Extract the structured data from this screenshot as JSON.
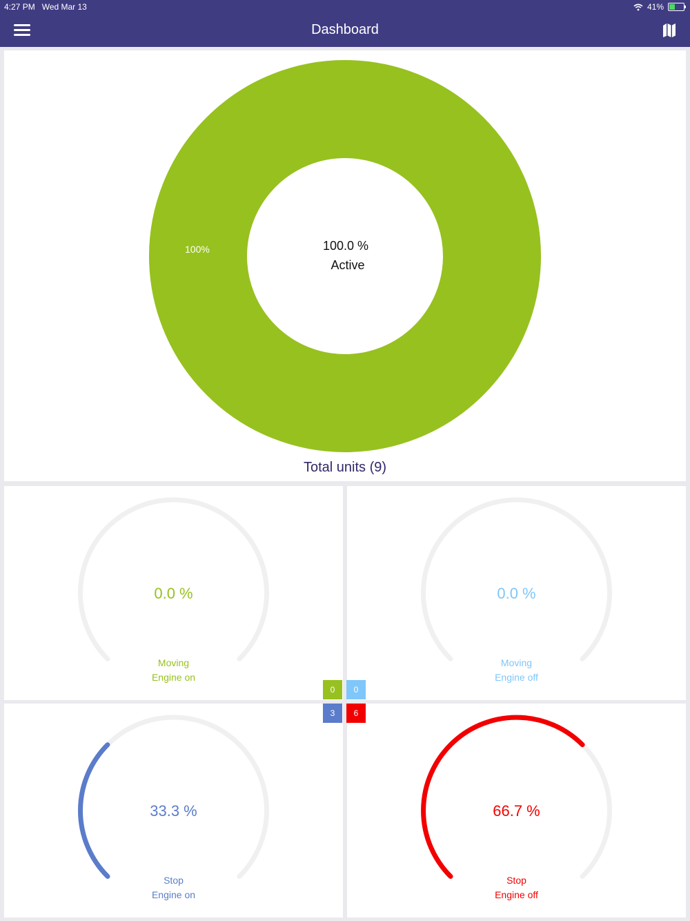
{
  "status_bar": {
    "time": "4:27 PM",
    "date": "Wed Mar 13",
    "battery": "41%",
    "battery_fraction": 0.41,
    "wifi_icon": "wifi-icon",
    "battery_icon": "battery-charging-icon"
  },
  "header": {
    "title": "Dashboard",
    "menu_icon": "hamburger-menu-icon",
    "map_icon": "map-icon",
    "color": "#403c82"
  },
  "donut": {
    "percent_text": "100.0 %",
    "status_text": "Active",
    "slice_label": "100%",
    "total_label": "Total units (9)",
    "color": "#97c11f",
    "fraction": 1.0
  },
  "gauges": [
    {
      "value_text": "0.0 %",
      "line1": "Moving",
      "line2": "Engine on",
      "fraction": 0.0,
      "color": "#97c11f"
    },
    {
      "value_text": "0.0 %",
      "line1": "Moving",
      "line2": "Engine off",
      "fraction": 0.0,
      "color": "#7fc6fa"
    },
    {
      "value_text": "33.3 %",
      "line1": "Stop",
      "line2": "Engine on",
      "fraction": 0.333,
      "color": "#5b7cca"
    },
    {
      "value_text": "66.7 %",
      "line1": "Stop",
      "line2": "Engine off",
      "fraction": 0.667,
      "color": "#f20000"
    }
  ],
  "legend": [
    {
      "count": "0",
      "color": "#97c11f"
    },
    {
      "count": "0",
      "color": "#7fc6fa"
    },
    {
      "count": "3",
      "color": "#5b7cca"
    },
    {
      "count": "6",
      "color": "#f20000"
    }
  ]
}
